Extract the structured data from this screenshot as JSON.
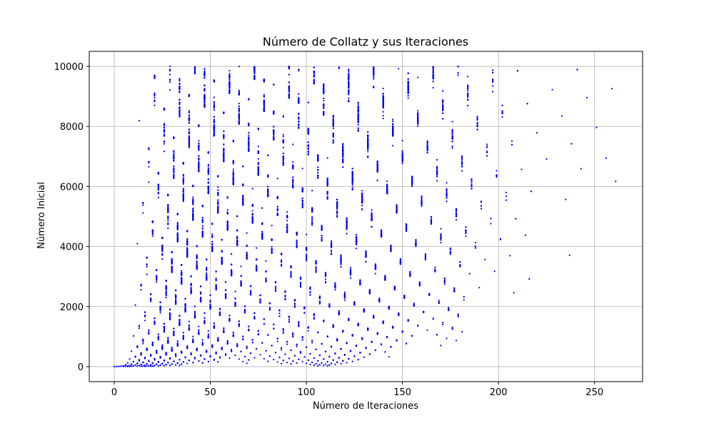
{
  "chart_data": {
    "type": "scatter",
    "title": "Número de Collatz y sus Iteraciones",
    "xlabel": "Número de Iteraciones",
    "ylabel": "Número Inicial",
    "xlim": [
      -13,
      275
    ],
    "ylim": [
      -500,
      10500
    ],
    "xticks": [
      0,
      50,
      100,
      150,
      200,
      250
    ],
    "yticks": [
      0,
      2000,
      4000,
      6000,
      8000,
      10000
    ],
    "grid": true,
    "marker_color": "#0000ff",
    "series": [
      {
        "generator": "collatz_stopping_time",
        "n_range": [
          1,
          10000
        ],
        "x": "iterations",
        "y": "initial_number"
      }
    ]
  }
}
